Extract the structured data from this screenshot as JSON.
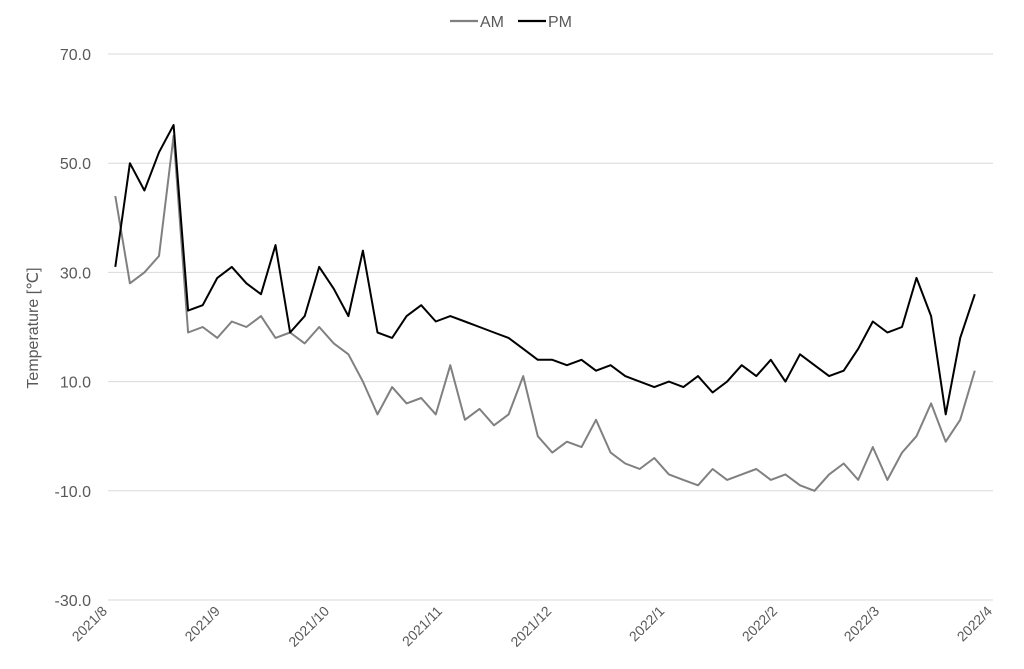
{
  "chart_data": {
    "type": "line",
    "ylabel": "Temperature [℃]",
    "ylim": [
      -30,
      70
    ],
    "y_ticks": [
      "70.0",
      "50.0",
      "30.0",
      "10.0",
      "-10.0",
      "-30.0"
    ],
    "y_tick_values": [
      70,
      50,
      30,
      10,
      -10,
      -30
    ],
    "x_ticks": [
      "2021/8",
      "2021/9",
      "2021/10",
      "2021/11",
      "2021/12",
      "2022/1",
      "2022/2",
      "2022/3",
      "2022/4"
    ],
    "grid": "horizontal",
    "legend": "top-center",
    "series": [
      {
        "name": "AM",
        "color": "#808080",
        "x": [
          "2021-08-03",
          "2021-08-07",
          "2021-08-11",
          "2021-08-15",
          "2021-08-19",
          "2021-08-23",
          "2021-08-27",
          "2021-08-31",
          "2021-09-04",
          "2021-09-08",
          "2021-09-12",
          "2021-09-16",
          "2021-09-20",
          "2021-09-24",
          "2021-09-28",
          "2021-10-02",
          "2021-10-06",
          "2021-10-10",
          "2021-10-14",
          "2021-10-18",
          "2021-10-22",
          "2021-10-26",
          "2021-10-30",
          "2021-11-03",
          "2021-11-07",
          "2021-11-11",
          "2021-11-15",
          "2021-11-19",
          "2021-11-23",
          "2021-11-27",
          "2021-12-01",
          "2021-12-05",
          "2021-12-09",
          "2021-12-13",
          "2021-12-17",
          "2021-12-21",
          "2021-12-25",
          "2021-12-29",
          "2022-01-02",
          "2022-01-06",
          "2022-01-10",
          "2022-01-14",
          "2022-01-18",
          "2022-01-22",
          "2022-01-26",
          "2022-01-30",
          "2022-02-03",
          "2022-02-07",
          "2022-02-11",
          "2022-02-15",
          "2022-02-19",
          "2022-02-23",
          "2022-02-27",
          "2022-03-03",
          "2022-03-07",
          "2022-03-11",
          "2022-03-15",
          "2022-03-19",
          "2022-03-23",
          "2022-03-27"
        ],
        "values": [
          44,
          28,
          30,
          33,
          55,
          19,
          20,
          18,
          21,
          20,
          22,
          18,
          19,
          17,
          20,
          17,
          15,
          10,
          4,
          9,
          6,
          7,
          4,
          13,
          3,
          5,
          2,
          4,
          11,
          0,
          -3,
          -1,
          -2,
          3,
          -3,
          -5,
          -6,
          -4,
          -7,
          -8,
          -9,
          -6,
          -8,
          -7,
          -6,
          -8,
          -7,
          -9,
          -10,
          -7,
          -5,
          -8,
          -2,
          -8,
          -3,
          0,
          6,
          -1,
          3,
          12
        ]
      },
      {
        "name": "PM",
        "color": "#000000",
        "x": [
          "2021-08-03",
          "2021-08-07",
          "2021-08-11",
          "2021-08-15",
          "2021-08-19",
          "2021-08-23",
          "2021-08-27",
          "2021-08-31",
          "2021-09-04",
          "2021-09-08",
          "2021-09-12",
          "2021-09-16",
          "2021-09-20",
          "2021-09-24",
          "2021-09-28",
          "2021-10-02",
          "2021-10-06",
          "2021-10-10",
          "2021-10-14",
          "2021-10-18",
          "2021-10-22",
          "2021-10-26",
          "2021-10-30",
          "2021-11-03",
          "2021-11-07",
          "2021-11-11",
          "2021-11-15",
          "2021-11-19",
          "2021-11-23",
          "2021-11-27",
          "2021-12-01",
          "2021-12-05",
          "2021-12-09",
          "2021-12-13",
          "2021-12-17",
          "2021-12-21",
          "2021-12-25",
          "2021-12-29",
          "2022-01-02",
          "2022-01-06",
          "2022-01-10",
          "2022-01-14",
          "2022-01-18",
          "2022-01-22",
          "2022-01-26",
          "2022-01-30",
          "2022-02-03",
          "2022-02-07",
          "2022-02-11",
          "2022-02-15",
          "2022-02-19",
          "2022-02-23",
          "2022-02-27",
          "2022-03-03",
          "2022-03-07",
          "2022-03-11",
          "2022-03-15",
          "2022-03-19",
          "2022-03-23",
          "2022-03-27"
        ],
        "values": [
          31,
          50,
          45,
          52,
          57,
          23,
          24,
          29,
          31,
          28,
          26,
          35,
          19,
          22,
          31,
          27,
          22,
          34,
          19,
          18,
          22,
          24,
          21,
          22,
          21,
          20,
          19,
          18,
          16,
          14,
          14,
          13,
          14,
          12,
          13,
          11,
          10,
          9,
          10,
          9,
          11,
          8,
          10,
          13,
          11,
          14,
          10,
          15,
          13,
          11,
          12,
          16,
          21,
          19,
          20,
          29,
          22,
          4,
          18,
          26
        ]
      }
    ]
  }
}
